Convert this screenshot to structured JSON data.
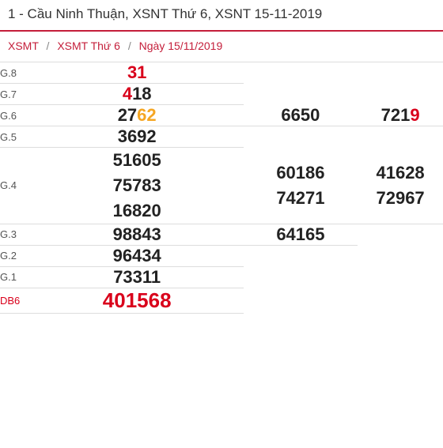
{
  "title": "1 - Cầu Ninh Thuận, XSNT Thứ 6, XSNT 15-11-2019",
  "breadcrumb": {
    "a": "XSMT",
    "b": "XSMT Thứ 6",
    "c": "Ngày 15/11/2019"
  },
  "colors": {
    "red": "#d9001b",
    "orange": "#f5a623",
    "text": "#222222",
    "divider": "#c41e3a",
    "border": "#dddddd",
    "label": "#555555"
  },
  "rows": [
    {
      "label": "G.8",
      "cols": 1,
      "cells": [
        [
          {
            "t": "31",
            "c": "red"
          }
        ]
      ]
    },
    {
      "label": "G.7",
      "cols": 1,
      "cells": [
        [
          {
            "t": "4",
            "c": "red"
          },
          {
            "t": "18"
          }
        ]
      ]
    },
    {
      "label": "G.6",
      "cols": 3,
      "cells": [
        [
          {
            "t": "27"
          },
          {
            "t": "62",
            "c": "orange"
          }
        ],
        [
          {
            "t": "6650"
          }
        ],
        [
          {
            "t": "721"
          },
          {
            "t": "9",
            "c": "red"
          }
        ]
      ]
    },
    {
      "label": "G.5",
      "cols": 1,
      "cells": [
        [
          {
            "t": "3692"
          }
        ]
      ]
    },
    {
      "label": "G.4",
      "cols": 3,
      "multiline": true,
      "cells": [
        [
          [
            {
              "t": "51605"
            }
          ],
          [
            {
              "t": "75783"
            }
          ],
          [
            {
              "t": "16820"
            }
          ]
        ],
        [
          [
            {
              "t": "60186"
            }
          ],
          [
            {
              "t": "74271"
            }
          ]
        ],
        [
          [
            {
              "t": "41628"
            }
          ],
          [
            {
              "t": "72967"
            }
          ]
        ]
      ]
    },
    {
      "label": "G.3",
      "cols": 2,
      "cells": [
        [
          {
            "t": "98843"
          }
        ],
        [
          {
            "t": "64165"
          }
        ]
      ]
    },
    {
      "label": "G.2",
      "cols": 1,
      "cells": [
        [
          {
            "t": "96434"
          }
        ]
      ]
    },
    {
      "label": "G.1",
      "cols": 1,
      "cells": [
        [
          {
            "t": "73311"
          }
        ]
      ]
    },
    {
      "label": "DB6",
      "cols": 1,
      "db": true,
      "cells": [
        [
          {
            "t": "401568"
          }
        ]
      ]
    }
  ]
}
